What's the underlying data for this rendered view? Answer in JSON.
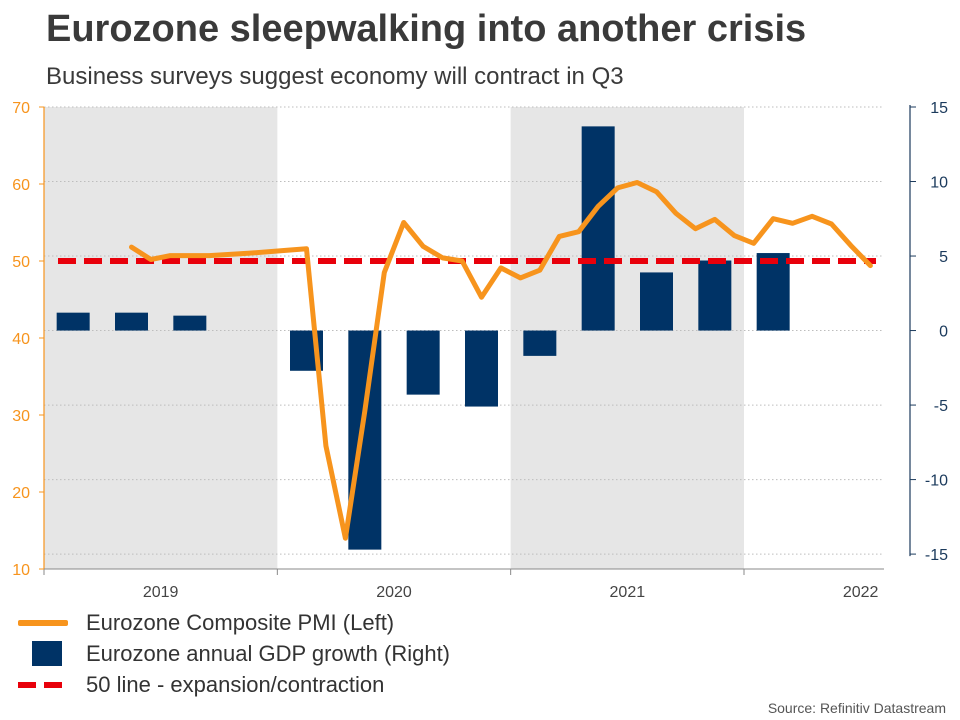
{
  "title": "Eurozone sleepwalking into another crisis",
  "subtitle": "Business surveys suggest economy will contract in Q3",
  "source": "Source: Refinitiv Datastream",
  "colors": {
    "pmi_line": "#f7941d",
    "gdp_bar": "#003366",
    "fifty_line": "#e8000b",
    "shade": "#e6e6e6",
    "left_axis": "#f7941d",
    "right_axis": "#1b3a5c"
  },
  "legend": {
    "pmi": "Eurozone Composite PMI (Left)",
    "gdp": "Eurozone annual GDP growth (Right)",
    "fifty": "50 line - expansion/contraction"
  },
  "chart_data": {
    "type": "bar+line",
    "title": "Eurozone sleepwalking into another crisis",
    "subtitle": "Business surveys suggest economy will contract in Q3",
    "x_ticks": [
      "2019",
      "2020",
      "2021",
      "2022"
    ],
    "x_range_years": [
      2019.0,
      2022.6
    ],
    "shaded_years": [
      "2019",
      "2021"
    ],
    "left_axis": {
      "label": "Eurozone Composite PMI",
      "ylim": [
        10,
        70
      ],
      "ticks": [
        10,
        20,
        30,
        40,
        50,
        60,
        70
      ]
    },
    "right_axis": {
      "label": "Eurozone annual GDP growth",
      "ylim": [
        -16,
        15
      ],
      "ticks": [
        -15,
        -10,
        -5,
        0,
        5,
        10,
        15
      ]
    },
    "gdp_growth": {
      "name": "Eurozone annual GDP growth (Right)",
      "axis": "right",
      "categories": [
        "2019 Q1",
        "2019 Q2",
        "2019 Q3",
        "2019 Q4",
        "2020 Q1",
        "2020 Q2",
        "2020 Q3",
        "2020 Q4",
        "2021 Q1",
        "2021 Q2",
        "2021 Q3",
        "2021 Q4",
        "2022 Q1",
        "2022 Q2"
      ],
      "values": [
        1.2,
        1.2,
        1.0,
        null,
        -2.7,
        -14.7,
        -4.3,
        -5.1,
        -1.7,
        13.7,
        3.9,
        4.7,
        5.2,
        null
      ]
    },
    "pmi": {
      "name": "Eurozone Composite PMI (Left)",
      "axis": "left",
      "points": [
        {
          "x": "2019-05",
          "y": 51.8
        },
        {
          "x": "2019-06",
          "y": 50.2
        },
        {
          "x": "2019-07",
          "y": 50.7
        },
        {
          "x": "2019-09",
          "y": 50.7
        },
        {
          "x": "2019-11",
          "y": 51.0
        },
        {
          "x": "2020-01",
          "y": 51.4
        },
        {
          "x": "2020-02",
          "y": 51.6
        },
        {
          "x": "2020-03",
          "y": 26.0
        },
        {
          "x": "2020-04",
          "y": 14.0
        },
        {
          "x": "2020-05",
          "y": 30.5
        },
        {
          "x": "2020-06",
          "y": 48.5
        },
        {
          "x": "2020-07",
          "y": 55.0
        },
        {
          "x": "2020-08",
          "y": 51.9
        },
        {
          "x": "2020-09",
          "y": 50.4
        },
        {
          "x": "2020-10",
          "y": 50.0
        },
        {
          "x": "2020-11",
          "y": 45.3
        },
        {
          "x": "2020-12",
          "y": 49.1
        },
        {
          "x": "2021-01",
          "y": 47.8
        },
        {
          "x": "2021-02",
          "y": 48.8
        },
        {
          "x": "2021-03",
          "y": 53.2
        },
        {
          "x": "2021-04",
          "y": 53.8
        },
        {
          "x": "2021-05",
          "y": 57.1
        },
        {
          "x": "2021-06",
          "y": 59.5
        },
        {
          "x": "2021-07",
          "y": 60.2
        },
        {
          "x": "2021-08",
          "y": 59.0
        },
        {
          "x": "2021-09",
          "y": 56.2
        },
        {
          "x": "2021-10",
          "y": 54.2
        },
        {
          "x": "2021-11",
          "y": 55.4
        },
        {
          "x": "2021-12",
          "y": 53.3
        },
        {
          "x": "2022-01",
          "y": 52.3
        },
        {
          "x": "2022-02",
          "y": 55.5
        },
        {
          "x": "2022-03",
          "y": 54.9
        },
        {
          "x": "2022-04",
          "y": 55.8
        },
        {
          "x": "2022-05",
          "y": 54.8
        },
        {
          "x": "2022-06",
          "y": 52.0
        },
        {
          "x": "2022-07",
          "y": 49.4
        }
      ]
    },
    "reference_line": {
      "name": "50 line - expansion/contraction",
      "axis": "left",
      "y": 50
    }
  }
}
